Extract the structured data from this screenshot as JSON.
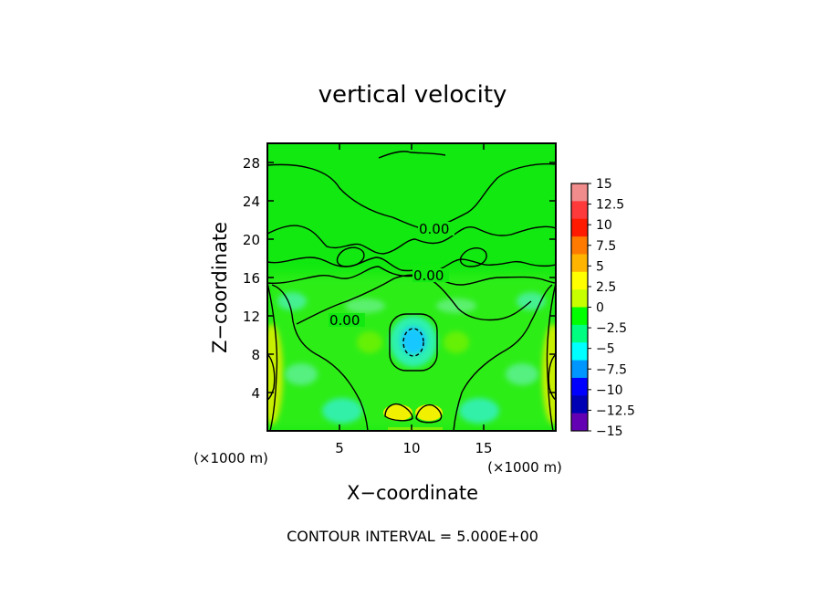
{
  "chart_data": {
    "type": "heatmap",
    "title": "vertical velocity",
    "xlabel": "X−coordinate",
    "ylabel": "Z−coordinate",
    "x_unit_left": "(×1000 m)",
    "x_unit_right": "(×1000 m)",
    "xlim": [
      0,
      20
    ],
    "ylim": [
      0,
      30
    ],
    "xticks": [
      5,
      10,
      15
    ],
    "yticks": [
      4,
      8,
      12,
      16,
      20,
      24,
      28
    ],
    "xtick_labels": [
      "5",
      "10",
      "15"
    ],
    "ytick_labels": [
      "4",
      "8",
      "12",
      "16",
      "20",
      "24",
      "28"
    ],
    "footer": "CONTOUR INTERVAL = 5.000E+00",
    "contour_labels": [
      "0.00",
      "0.00",
      "0.00"
    ],
    "colorbar": {
      "ticks": [
        15,
        12.5,
        10,
        7.5,
        5,
        2.5,
        0,
        -2.5,
        -5,
        -7.5,
        -10,
        -12.5,
        -15
      ],
      "tick_labels": [
        "15",
        "12.5",
        "10",
        "7.5",
        "5",
        "2.5",
        "0",
        "−2.5",
        "−5",
        "−7.5",
        "−10",
        "−12.5",
        "−15"
      ],
      "colors": [
        "#f08c8c",
        "#ff3a3a",
        "#ff1a00",
        "#ff7a00",
        "#ffb400",
        "#ffff00",
        "#c8ff00",
        "#00ff00",
        "#00ff80",
        "#00ffff",
        "#0096ff",
        "#0000ff",
        "#0000b4",
        "#6400b4"
      ]
    },
    "features": [
      {
        "kind": "updraft",
        "x": 9.8,
        "z": 2.3,
        "value": 4
      },
      {
        "kind": "updraft",
        "x": 12.3,
        "z": 2.3,
        "value": 4
      },
      {
        "kind": "downdraft",
        "x": 10.0,
        "z": 9.5,
        "value": -6
      },
      {
        "kind": "updraft-edge",
        "x": 0.2,
        "z": 6.0,
        "value": 3
      },
      {
        "kind": "updraft-edge",
        "x": 19.8,
        "z": 6.0,
        "value": 3
      }
    ]
  }
}
